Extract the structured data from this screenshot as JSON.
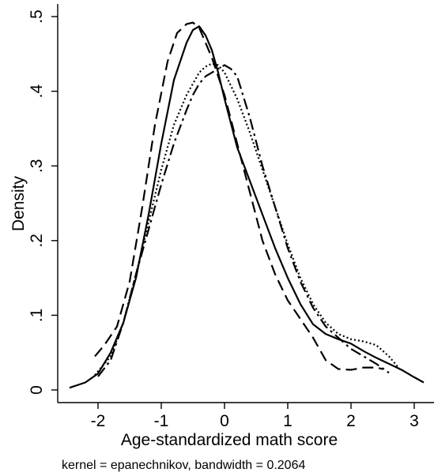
{
  "chart_data": {
    "type": "line",
    "title": "",
    "xlabel": "Age-standardized math score",
    "ylabel": "Density",
    "note": "kernel = epanechnikov, bandwidth = 0.2064",
    "xlim": [
      -2.6,
      3.25
    ],
    "ylim": [
      0,
      0.5
    ],
    "x_ticks": [
      -2,
      -1,
      0,
      1,
      2,
      3
    ],
    "x_tick_labels": [
      "-2",
      "-1",
      "0",
      "1",
      "2",
      "3"
    ],
    "y_ticks": [
      0,
      0.1,
      0.2,
      0.3,
      0.4,
      0.5
    ],
    "y_tick_labels": [
      "0",
      ".1",
      ".2",
      ".3",
      ".4",
      ".5"
    ],
    "grid": false,
    "legend": "none",
    "series": [
      {
        "style": "solid",
        "x": [
          -2.45,
          -2.2,
          -2.0,
          -1.8,
          -1.6,
          -1.4,
          -1.2,
          -1.0,
          -0.8,
          -0.6,
          -0.5,
          -0.4,
          -0.3,
          -0.2,
          -0.1,
          0.0,
          0.2,
          0.4,
          0.6,
          0.8,
          1.0,
          1.2,
          1.4,
          1.6,
          1.8,
          2.0,
          2.2,
          2.4,
          2.6,
          2.8,
          3.0,
          3.15
        ],
        "y": [
          0.003,
          0.01,
          0.022,
          0.05,
          0.09,
          0.15,
          0.235,
          0.33,
          0.415,
          0.465,
          0.482,
          0.487,
          0.475,
          0.455,
          0.425,
          0.39,
          0.325,
          0.28,
          0.235,
          0.19,
          0.15,
          0.115,
          0.088,
          0.075,
          0.068,
          0.062,
          0.052,
          0.043,
          0.035,
          0.027,
          0.017,
          0.01
        ]
      },
      {
        "style": "dashed",
        "x": [
          -2.05,
          -1.9,
          -1.7,
          -1.5,
          -1.3,
          -1.1,
          -0.9,
          -0.75,
          -0.6,
          -0.5,
          -0.4,
          -0.3,
          -0.2,
          -0.1,
          0.0,
          0.2,
          0.4,
          0.6,
          0.8,
          1.0,
          1.2,
          1.4,
          1.6,
          1.8,
          2.0,
          2.2,
          2.4,
          2.5
        ],
        "y": [
          0.045,
          0.06,
          0.085,
          0.145,
          0.245,
          0.355,
          0.44,
          0.478,
          0.49,
          0.492,
          0.485,
          0.465,
          0.445,
          0.42,
          0.395,
          0.33,
          0.265,
          0.2,
          0.155,
          0.12,
          0.095,
          0.07,
          0.04,
          0.028,
          0.027,
          0.03,
          0.03,
          0.028
        ]
      },
      {
        "style": "dashdot",
        "x": [
          -2.0,
          -1.8,
          -1.6,
          -1.4,
          -1.2,
          -1.0,
          -0.8,
          -0.6,
          -0.5,
          -0.4,
          -0.3,
          -0.2,
          -0.1,
          0.0,
          0.1,
          0.2,
          0.4,
          0.6,
          0.8,
          1.0,
          1.2,
          1.4,
          1.6,
          1.8,
          2.0,
          2.2,
          2.4,
          2.6
        ],
        "y": [
          0.018,
          0.04,
          0.09,
          0.155,
          0.215,
          0.275,
          0.33,
          0.375,
          0.395,
          0.41,
          0.42,
          0.425,
          0.43,
          0.435,
          0.43,
          0.42,
          0.365,
          0.3,
          0.245,
          0.19,
          0.145,
          0.11,
          0.085,
          0.07,
          0.055,
          0.045,
          0.035,
          0.023
        ]
      },
      {
        "style": "dotted",
        "x": [
          -2.05,
          -1.8,
          -1.6,
          -1.4,
          -1.2,
          -1.0,
          -0.8,
          -0.6,
          -0.4,
          -0.3,
          -0.2,
          -0.1,
          0.0,
          0.2,
          0.4,
          0.6,
          0.8,
          1.0,
          1.2,
          1.4,
          1.6,
          1.8,
          2.0,
          2.2,
          2.4,
          2.6,
          2.8
        ],
        "y": [
          0.02,
          0.045,
          0.09,
          0.155,
          0.225,
          0.295,
          0.355,
          0.395,
          0.425,
          0.433,
          0.437,
          0.435,
          0.425,
          0.39,
          0.345,
          0.295,
          0.245,
          0.195,
          0.15,
          0.115,
          0.09,
          0.075,
          0.068,
          0.065,
          0.06,
          0.045,
          0.025
        ]
      }
    ]
  }
}
